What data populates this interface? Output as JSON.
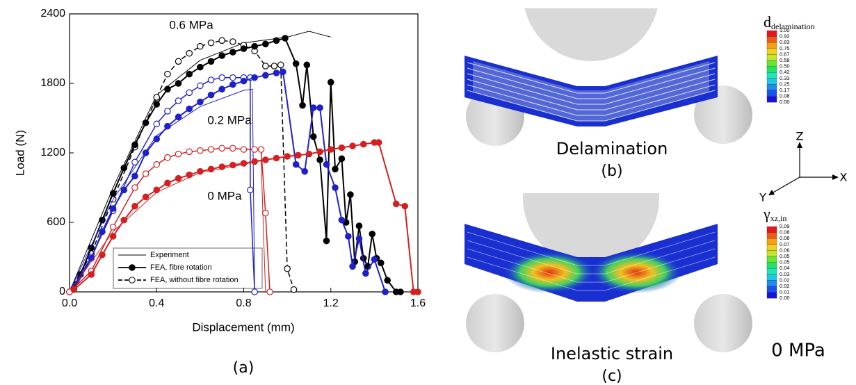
{
  "chart_data": {
    "type": "line",
    "panel_label": "(a)",
    "xlabel": "Displacement (mm)",
    "ylabel": "Load (N)",
    "xlim": [
      0,
      1.6
    ],
    "ylim": [
      0,
      2400
    ],
    "xticks": [
      {
        "value": 0,
        "label": "0.0"
      },
      0.4,
      0.8,
      1.2,
      1.6
    ],
    "yticks": [
      0,
      600,
      1200,
      1800,
      2400
    ],
    "legend": {
      "position": "lower left",
      "entries": [
        "Experiment",
        "FEA, fibre rotation",
        "FEA, without fibre rotation"
      ]
    },
    "series": [
      {
        "name": "0.6 MPa",
        "color": "#000000",
        "experiment": {
          "x": [
            0,
            0.2,
            0.4,
            0.6,
            0.8,
            1.0,
            1.1,
            1.2
          ],
          "values": [
            0,
            900,
            1700,
            2000,
            2150,
            2200,
            2250,
            2200
          ]
        },
        "fibre": {
          "x": [
            0.02,
            0.05,
            0.1,
            0.15,
            0.2,
            0.25,
            0.3,
            0.35,
            0.4,
            0.45,
            0.5,
            0.55,
            0.6,
            0.65,
            0.7,
            0.75,
            0.8,
            0.85,
            0.9,
            0.95,
            0.99,
            1.04,
            1.07,
            1.09,
            1.12,
            1.15,
            1.18,
            1.2,
            1.22,
            1.25,
            1.27,
            1.29,
            1.31,
            1.33,
            1.35,
            1.37,
            1.39,
            1.41,
            1.43,
            1.46,
            1.5,
            1.52
          ],
          "values": [
            30,
            150,
            380,
            620,
            850,
            1070,
            1270,
            1460,
            1620,
            1750,
            1800,
            1880,
            1940,
            1990,
            2040,
            2070,
            2100,
            2120,
            2140,
            2170,
            2190,
            1970,
            1610,
            1960,
            1340,
            1140,
            440,
            1810,
            1060,
            1150,
            600,
            840,
            260,
            570,
            290,
            220,
            500,
            290,
            250,
            100,
            0,
            0
          ]
        },
        "no_fibre": {
          "x": [
            0,
            0.1,
            0.2,
            0.3,
            0.4,
            0.45,
            0.5,
            0.55,
            0.6,
            0.65,
            0.7,
            0.75,
            0.8,
            0.85,
            0.9,
            0.94,
            0.97,
            1.0,
            1.03
          ],
          "values": [
            0,
            330,
            800,
            1250,
            1680,
            1880,
            1990,
            2060,
            2120,
            2150,
            2170,
            2160,
            2130,
            2080,
            1950,
            1950,
            1960,
            200,
            20
          ]
        }
      },
      {
        "name": "0.2 MPa",
        "color": "#1f1fcc",
        "experiment": {
          "x": [
            0,
            0.2,
            0.4,
            0.6,
            0.8,
            0.84,
            0.85
          ],
          "values": [
            0,
            800,
            1350,
            1600,
            1740,
            1750,
            0
          ]
        },
        "fibre": {
          "x": [
            0.02,
            0.1,
            0.15,
            0.2,
            0.25,
            0.3,
            0.35,
            0.4,
            0.45,
            0.5,
            0.55,
            0.6,
            0.65,
            0.7,
            0.75,
            0.8,
            0.85,
            0.9,
            0.95,
            0.98,
            1.04,
            1.08,
            1.12,
            1.15,
            1.18,
            1.22,
            1.25,
            1.28,
            1.3,
            1.33,
            1.36,
            1.4,
            1.45
          ],
          "values": [
            20,
            290,
            520,
            720,
            880,
            1000,
            1200,
            1320,
            1430,
            1510,
            1580,
            1640,
            1700,
            1750,
            1790,
            1820,
            1850,
            1870,
            1890,
            1900,
            1100,
            1040,
            1590,
            1590,
            1100,
            900,
            620,
            480,
            220,
            460,
            160,
            280,
            0
          ]
        },
        "no_fibre": {
          "x": [
            0,
            0.1,
            0.2,
            0.3,
            0.4,
            0.45,
            0.5,
            0.55,
            0.6,
            0.65,
            0.7,
            0.75,
            0.8,
            0.83,
            0.83,
            0.85
          ],
          "values": [
            0,
            300,
            700,
            1120,
            1450,
            1560,
            1650,
            1720,
            1780,
            1830,
            1850,
            1850,
            1850,
            1850,
            880,
            0
          ]
        }
      },
      {
        "name": "0 MPa",
        "color": "#d42020",
        "experiment": {
          "x": [
            0,
            0.2,
            0.4,
            0.6,
            0.8,
            0.88,
            0.9
          ],
          "values": [
            0,
            520,
            860,
            1030,
            1100,
            1140,
            0
          ]
        },
        "fibre": {
          "x": [
            0.02,
            0.1,
            0.15,
            0.2,
            0.25,
            0.3,
            0.35,
            0.4,
            0.45,
            0.5,
            0.55,
            0.6,
            0.65,
            0.7,
            0.75,
            0.8,
            0.85,
            0.9,
            0.95,
            1.0,
            1.05,
            1.1,
            1.15,
            1.2,
            1.25,
            1.3,
            1.35,
            1.4,
            1.42,
            1.5,
            1.54,
            1.58,
            1.6
          ],
          "values": [
            20,
            150,
            320,
            480,
            620,
            740,
            820,
            880,
            940,
            980,
            1010,
            1040,
            1060,
            1080,
            1095,
            1110,
            1125,
            1140,
            1155,
            1170,
            1180,
            1190,
            1210,
            1230,
            1245,
            1260,
            1275,
            1290,
            1290,
            760,
            740,
            0,
            0
          ]
        },
        "no_fibre": {
          "x": [
            0,
            0.1,
            0.2,
            0.3,
            0.35,
            0.4,
            0.45,
            0.5,
            0.55,
            0.6,
            0.65,
            0.7,
            0.75,
            0.8,
            0.85,
            0.88,
            0.9,
            0.92
          ],
          "values": [
            0,
            180,
            560,
            900,
            1020,
            1100,
            1160,
            1190,
            1210,
            1220,
            1230,
            1240,
            1240,
            1230,
            1230,
            1230,
            680,
            0
          ]
        }
      }
    ]
  },
  "panels": {
    "b": {
      "label": "(b)",
      "caption": "Delamination",
      "colorbar": {
        "symbol": "d",
        "subscript": "delamination",
        "labels": [
          "1.00",
          "0.92",
          "0.83",
          "0.75",
          "0.67",
          "0.58",
          "0.50",
          "0.42",
          "0.33",
          "0.25",
          "0.17",
          "0.08",
          "0.00"
        ]
      }
    },
    "c": {
      "label": "(c)",
      "caption": "Inelastic strain",
      "pressure": "0 MPa",
      "colorbar": {
        "symbol": "γ",
        "subscript": "xz,in",
        "labels": [
          "0.09",
          "0.08",
          "0.08",
          "0.07",
          "0.06",
          "0.05",
          "0.05",
          "0.04",
          "0.03",
          "0.02",
          "0.02",
          "0.01",
          "0.00"
        ]
      }
    },
    "axes": {
      "z": "Z",
      "x": "X",
      "y": "Y"
    }
  }
}
